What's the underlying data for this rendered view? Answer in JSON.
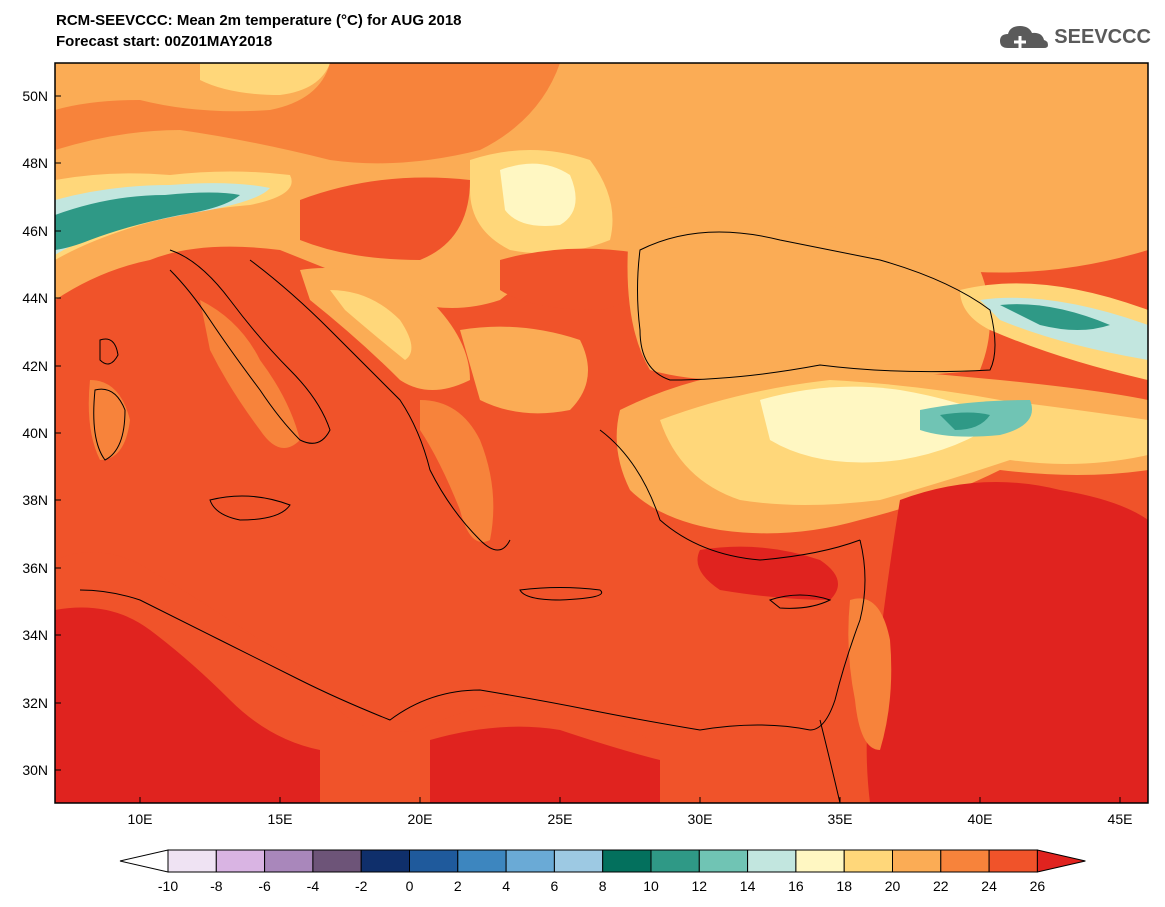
{
  "header": {
    "title": "RCM-SEEVCCC: Mean 2m temperature (°C) for AUG 2018",
    "subtitle": "Forecast start: 00Z01MAY2018"
  },
  "logo": {
    "text": "SEEVCCC",
    "icon": "cloud-icon"
  },
  "map": {
    "projection": "lat-lon",
    "lon_range": [
      7,
      46
    ],
    "lat_range": [
      29,
      51
    ],
    "lon_ticks": [
      "10E",
      "15E",
      "20E",
      "25E",
      "30E",
      "35E",
      "40E",
      "45E"
    ],
    "lat_ticks": [
      "50N",
      "48N",
      "46N",
      "44N",
      "42N",
      "40N",
      "38N",
      "36N",
      "34N",
      "32N",
      "30N"
    ],
    "background_color": "#f0532a"
  },
  "colorbar": {
    "labels": [
      "-10",
      "-8",
      "-6",
      "-4",
      "-2",
      "0",
      "2",
      "4",
      "6",
      "8",
      "10",
      "12",
      "14",
      "16",
      "18",
      "20",
      "22",
      "24",
      "26"
    ],
    "colors": [
      "#ffffff",
      "#efe3f3",
      "#d9b4e3",
      "#a987bb",
      "#6d5478",
      "#0f2f6b",
      "#1f5a9c",
      "#3d86bf",
      "#6aaad6",
      "#9dc9e3",
      "#03705d",
      "#2f9986",
      "#70c4b4",
      "#c2e6df",
      "#fff7c2",
      "#ffd77a",
      "#fbac55",
      "#f7833b",
      "#f0532a",
      "#e0231f"
    ]
  }
}
